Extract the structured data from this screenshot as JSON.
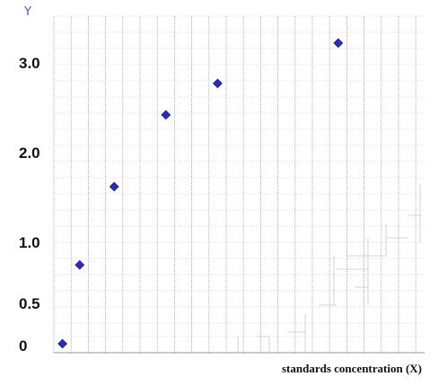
{
  "chart_data": {
    "type": "scatter",
    "title": "",
    "xlabel": "standards concentration (X)",
    "ylabel": "Y",
    "y_tick_labels": [
      "0",
      "0.5",
      "1.0",
      "2.0",
      "3.0"
    ],
    "y_tick_values": [
      0.0,
      0.5,
      1.0,
      2.0,
      3.0
    ],
    "grid": true,
    "legend": "none",
    "marker_color": "#2b2bb8",
    "points": [
      {
        "x": 0.5,
        "y": 0.0
      },
      {
        "x": 1.5,
        "y": 0.8
      },
      {
        "x": 3.5,
        "y": 1.6
      },
      {
        "x": 6.5,
        "y": 2.4
      },
      {
        "x": 9.5,
        "y": 2.75
      },
      {
        "x": 16.5,
        "y": 3.2
      }
    ]
  }
}
